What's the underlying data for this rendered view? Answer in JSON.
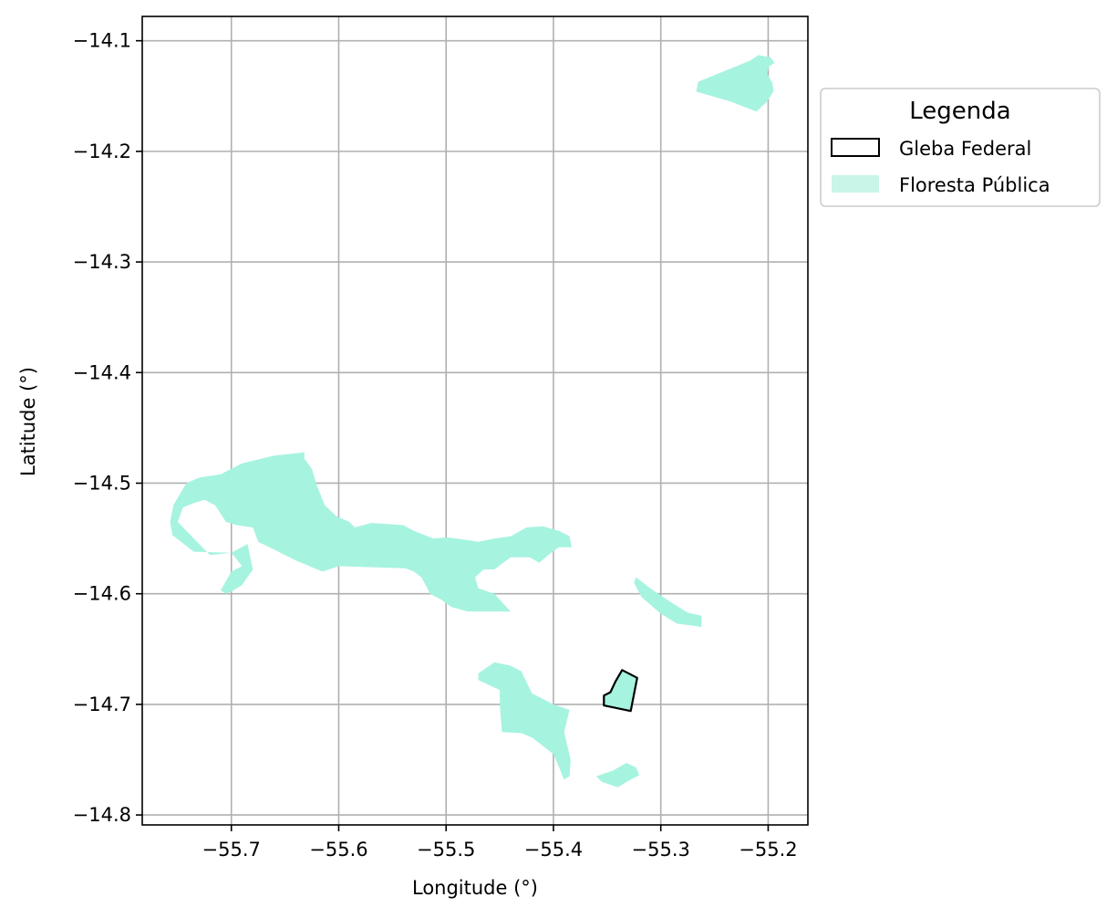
{
  "chart_data": {
    "type": "map",
    "xlabel": "Longitude (°)",
    "ylabel": "Latitude (°)",
    "xlim": [
      -55.783,
      -55.163
    ],
    "ylim": [
      -14.809,
      -14.078
    ],
    "grid": true,
    "x_ticks": [
      -55.7,
      -55.6,
      -55.5,
      -55.4,
      -55.3,
      -55.2
    ],
    "y_ticks": [
      -14.1,
      -14.2,
      -14.3,
      -14.4,
      -14.5,
      -14.6,
      -14.7,
      -14.8
    ],
    "x_tick_labels": [
      "−55.7",
      "−55.6",
      "−55.5",
      "−55.4",
      "−55.3",
      "−55.2"
    ],
    "y_tick_labels": [
      "−14.1",
      "−14.2",
      "−14.3",
      "−14.4",
      "−14.5",
      "−14.6",
      "−14.7",
      "−14.8"
    ],
    "legend": {
      "title": "Legenda",
      "placement": "outside-upper-right",
      "entries": [
        {
          "label": "Gleba Federal",
          "style": "outline",
          "edge_color": "#000000"
        },
        {
          "label": "Floresta Pública",
          "style": "fill",
          "fill_color": "#c8f5e7"
        }
      ]
    },
    "colors": {
      "floresta": "#a6f3e0",
      "gleba_edge": "#000000",
      "grid": "#b0b0b0"
    },
    "floresta_publica": [
      {
        "name": "northeast",
        "coords": [
          [
            -55.265,
            -14.137
          ],
          [
            -55.217,
            -14.118
          ],
          [
            -55.209,
            -14.113
          ],
          [
            -55.198,
            -14.115
          ],
          [
            -55.194,
            -14.12
          ],
          [
            -55.199,
            -14.123
          ],
          [
            -55.201,
            -14.13
          ],
          [
            -55.196,
            -14.138
          ],
          [
            -55.195,
            -14.146
          ],
          [
            -55.202,
            -14.156
          ],
          [
            -55.211,
            -14.164
          ],
          [
            -55.235,
            -14.155
          ],
          [
            -55.267,
            -14.146
          ]
        ]
      },
      {
        "name": "west-main",
        "coords": [
          [
            -55.754,
            -14.52
          ],
          [
            -55.742,
            -14.5
          ],
          [
            -55.73,
            -14.495
          ],
          [
            -55.71,
            -14.492
          ],
          [
            -55.69,
            -14.482
          ],
          [
            -55.66,
            -14.475
          ],
          [
            -55.64,
            -14.473
          ],
          [
            -55.632,
            -14.472
          ],
          [
            -55.632,
            -14.478
          ],
          [
            -55.625,
            -14.487
          ],
          [
            -55.62,
            -14.503
          ],
          [
            -55.613,
            -14.52
          ],
          [
            -55.602,
            -14.53
          ],
          [
            -55.59,
            -14.535
          ],
          [
            -55.585,
            -14.54
          ],
          [
            -55.57,
            -14.536
          ],
          [
            -55.555,
            -14.537
          ],
          [
            -55.54,
            -14.538
          ],
          [
            -55.53,
            -14.543
          ],
          [
            -55.512,
            -14.55
          ],
          [
            -55.5,
            -14.549
          ],
          [
            -55.49,
            -14.55
          ],
          [
            -55.47,
            -14.553
          ],
          [
            -55.455,
            -14.55
          ],
          [
            -55.44,
            -14.548
          ],
          [
            -55.425,
            -14.54
          ],
          [
            -55.41,
            -14.539
          ],
          [
            -55.395,
            -14.543
          ],
          [
            -55.385,
            -14.548
          ],
          [
            -55.383,
            -14.558
          ],
          [
            -55.395,
            -14.558
          ],
          [
            -55.405,
            -14.565
          ],
          [
            -55.413,
            -14.572
          ],
          [
            -55.422,
            -14.567
          ],
          [
            -55.44,
            -14.567
          ],
          [
            -55.455,
            -14.578
          ],
          [
            -55.465,
            -14.578
          ],
          [
            -55.473,
            -14.585
          ],
          [
            -55.47,
            -14.595
          ],
          [
            -55.455,
            -14.6
          ],
          [
            -55.44,
            -14.616
          ],
          [
            -55.48,
            -14.616
          ],
          [
            -55.495,
            -14.612
          ],
          [
            -55.505,
            -14.605
          ],
          [
            -55.515,
            -14.6
          ],
          [
            -55.518,
            -14.594
          ],
          [
            -55.523,
            -14.585
          ],
          [
            -55.53,
            -14.58
          ],
          [
            -55.538,
            -14.577
          ],
          [
            -55.6,
            -14.575
          ],
          [
            -55.615,
            -14.58
          ],
          [
            -55.64,
            -14.57
          ],
          [
            -55.66,
            -14.56
          ],
          [
            -55.675,
            -14.553
          ],
          [
            -55.68,
            -14.54
          ],
          [
            -55.695,
            -14.538
          ],
          [
            -55.705,
            -14.535
          ],
          [
            -55.715,
            -14.52
          ],
          [
            -55.725,
            -14.515
          ],
          [
            -55.735,
            -14.518
          ],
          [
            -55.745,
            -14.522
          ],
          [
            -55.75,
            -14.535
          ],
          [
            -55.73,
            -14.555
          ],
          [
            -55.72,
            -14.565
          ],
          [
            -55.7,
            -14.563
          ],
          [
            -55.685,
            -14.555
          ],
          [
            -55.68,
            -14.578
          ],
          [
            -55.69,
            -14.592
          ],
          [
            -55.7,
            -14.598
          ],
          [
            -55.705,
            -14.6
          ],
          [
            -55.71,
            -14.597
          ],
          [
            -55.7,
            -14.58
          ],
          [
            -55.69,
            -14.575
          ],
          [
            -55.7,
            -14.563
          ],
          [
            -55.735,
            -14.562
          ],
          [
            -55.755,
            -14.547
          ],
          [
            -55.757,
            -14.535
          ]
        ]
      },
      {
        "name": "east-strip",
        "coords": [
          [
            -55.323,
            -14.585
          ],
          [
            -55.31,
            -14.595
          ],
          [
            -55.29,
            -14.608
          ],
          [
            -55.275,
            -14.617
          ],
          [
            -55.262,
            -14.62
          ],
          [
            -55.262,
            -14.63
          ],
          [
            -55.285,
            -14.627
          ],
          [
            -55.3,
            -14.618
          ],
          [
            -55.318,
            -14.603
          ],
          [
            -55.325,
            -14.59
          ]
        ]
      },
      {
        "name": "south-center",
        "coords": [
          [
            -55.47,
            -14.672
          ],
          [
            -55.455,
            -14.662
          ],
          [
            -55.44,
            -14.665
          ],
          [
            -55.43,
            -14.67
          ],
          [
            -55.42,
            -14.69
          ],
          [
            -55.4,
            -14.7
          ],
          [
            -55.385,
            -14.705
          ],
          [
            -55.39,
            -14.725
          ],
          [
            -55.384,
            -14.75
          ],
          [
            -55.385,
            -14.765
          ],
          [
            -55.39,
            -14.768
          ],
          [
            -55.4,
            -14.745
          ],
          [
            -55.42,
            -14.73
          ],
          [
            -55.43,
            -14.726
          ],
          [
            -55.448,
            -14.725
          ],
          [
            -55.45,
            -14.7
          ],
          [
            -55.45,
            -14.687
          ],
          [
            -55.47,
            -14.678
          ]
        ]
      },
      {
        "name": "gleba-fill",
        "coords": [
          [
            -55.336,
            -14.669
          ],
          [
            -55.322,
            -14.676
          ],
          [
            -55.328,
            -14.706
          ],
          [
            -55.353,
            -14.701
          ],
          [
            -55.353,
            -14.692
          ],
          [
            -55.347,
            -14.689
          ],
          [
            -55.342,
            -14.679
          ]
        ]
      },
      {
        "name": "south-small",
        "coords": [
          [
            -55.332,
            -14.753
          ],
          [
            -55.323,
            -14.757
          ],
          [
            -55.32,
            -14.764
          ],
          [
            -55.33,
            -14.769
          ],
          [
            -55.34,
            -14.775
          ],
          [
            -55.355,
            -14.77
          ],
          [
            -55.36,
            -14.765
          ],
          [
            -55.345,
            -14.76
          ]
        ]
      }
    ],
    "gleba_federal": [
      [
        [
          -55.336,
          -14.669
        ],
        [
          -55.322,
          -14.676
        ],
        [
          -55.328,
          -14.706
        ],
        [
          -55.353,
          -14.701
        ],
        [
          -55.353,
          -14.692
        ],
        [
          -55.347,
          -14.689
        ],
        [
          -55.342,
          -14.679
        ]
      ]
    ]
  }
}
